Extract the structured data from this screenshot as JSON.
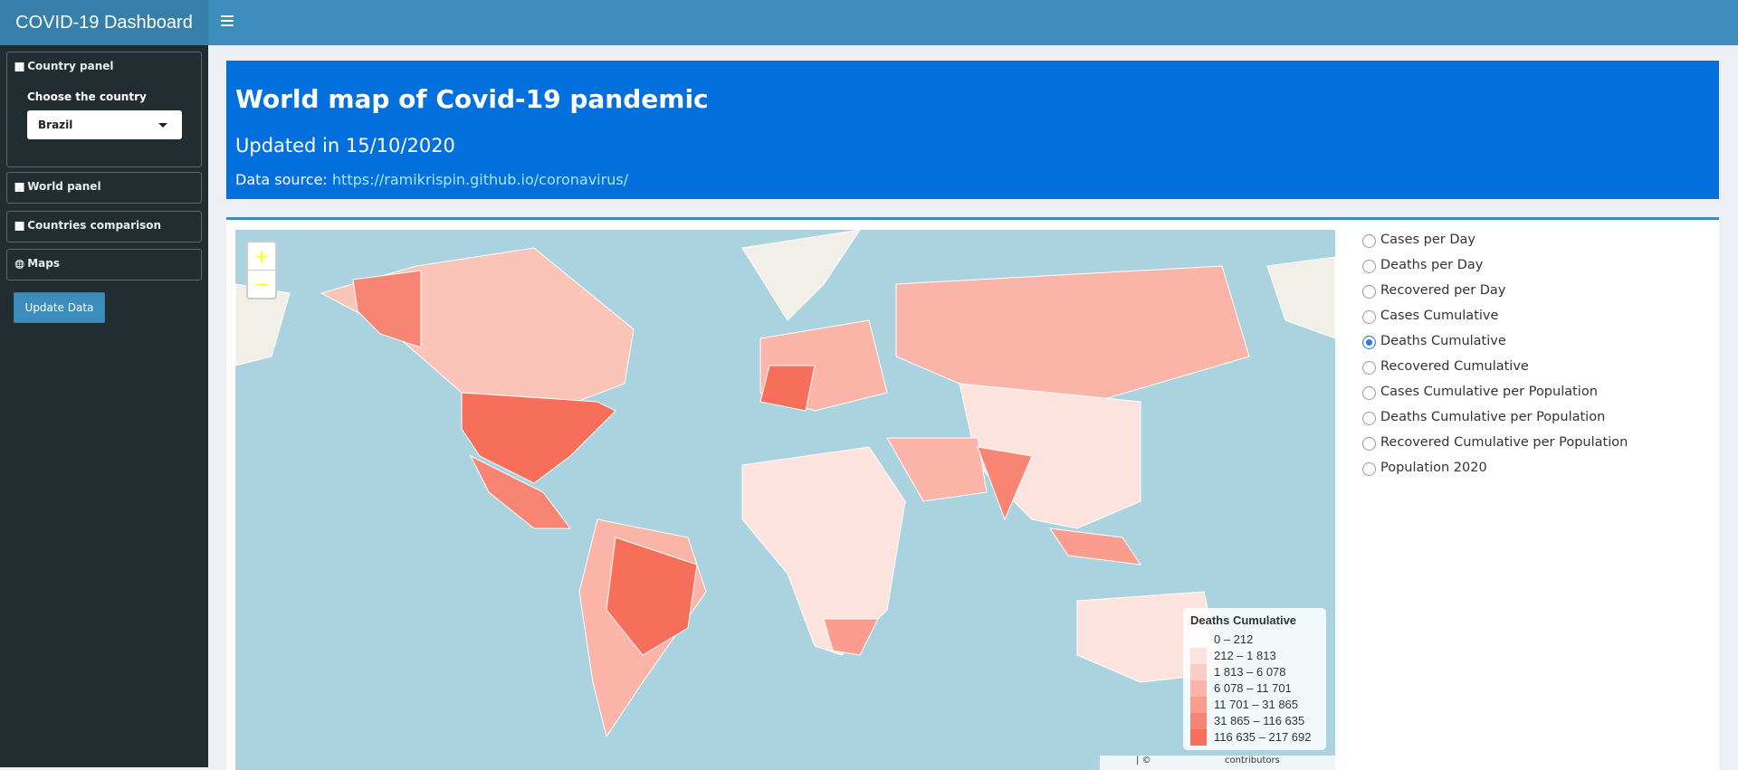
{
  "header": {
    "title": "COVID-19 Dashboard"
  },
  "sidebar": {
    "panels": [
      {
        "label": "Country panel",
        "field_label": "Choose the country",
        "selected": "Brazil"
      },
      {
        "label": "World panel"
      },
      {
        "label": "Countries comparison"
      },
      {
        "label": "Maps"
      }
    ],
    "button": "Update Data"
  },
  "banner": {
    "title": "World map of Covid-19 pandemic",
    "subtitle": "Updated in 15/10/2020",
    "source_label": "Data source:",
    "source_link": "https://ramikrispin.github.io/coronavirus/"
  },
  "map": {
    "zoom_in": "+",
    "zoom_out": "−",
    "legend": {
      "title": "Deaths Cumulative",
      "items": [
        "0 – 212",
        "212 – 1 813",
        "1 813 – 6 078",
        "6 078 – 11 701",
        "11 701 – 31 865",
        "31 865 – 116 635",
        "116 635 – 217 692"
      ],
      "colors": [
        "#ffffff",
        "#fde3de",
        "#fccbc3",
        "#fbb4a8",
        "#fa9c8e",
        "#f88574",
        "#f76e5b"
      ]
    },
    "attribution": [
      "| ©",
      "contributors"
    ]
  },
  "options": {
    "items": [
      "Cases per Day",
      "Deaths per Day",
      "Recovered per Day",
      "Cases Cumulative",
      "Deaths Cumulative",
      "Recovered Cumulative",
      "Cases Cumulative per Population",
      "Deaths Cumulative per Population",
      "Recovered Cumulative per Population",
      "Population 2020"
    ],
    "selected": "Deaths Cumulative"
  }
}
